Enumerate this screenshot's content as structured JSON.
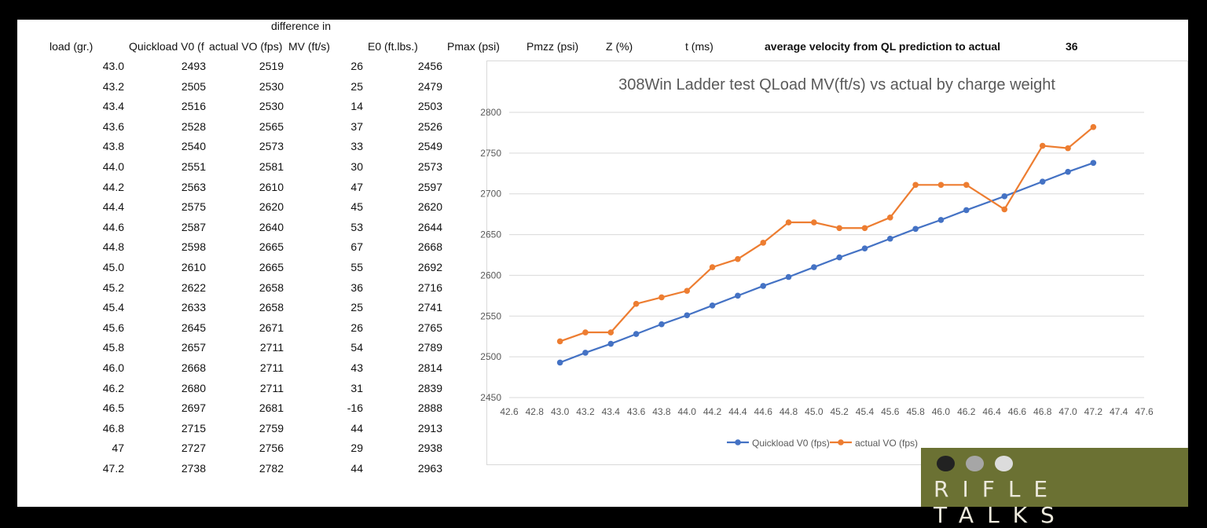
{
  "table": {
    "headers": [
      "load (gr.)",
      "Quickload V0 (f",
      "actual VO (fps)",
      "difference in",
      "MV (ft/s)",
      "E0 (ft.lbs.)",
      "Pmax (psi)",
      "Pmzz (psi)",
      "Z (%)",
      "t (ms)"
    ],
    "summary_label": "average velocity from QL prediction to actual",
    "summary_value": "36",
    "rows": [
      [
        "43.0",
        "2493",
        "2519",
        "26",
        "2456"
      ],
      [
        "43.2",
        "2505",
        "2530",
        "25",
        "2479"
      ],
      [
        "43.4",
        "2516",
        "2530",
        "14",
        "2503"
      ],
      [
        "43.6",
        "2528",
        "2565",
        "37",
        "2526"
      ],
      [
        "43.8",
        "2540",
        "2573",
        "33",
        "2549"
      ],
      [
        "44.0",
        "2551",
        "2581",
        "30",
        "2573"
      ],
      [
        "44.2",
        "2563",
        "2610",
        "47",
        "2597"
      ],
      [
        "44.4",
        "2575",
        "2620",
        "45",
        "2620"
      ],
      [
        "44.6",
        "2587",
        "2640",
        "53",
        "2644"
      ],
      [
        "44.8",
        "2598",
        "2665",
        "67",
        "2668"
      ],
      [
        "45.0",
        "2610",
        "2665",
        "55",
        "2692"
      ],
      [
        "45.2",
        "2622",
        "2658",
        "36",
        "2716"
      ],
      [
        "45.4",
        "2633",
        "2658",
        "25",
        "2741"
      ],
      [
        "45.6",
        "2645",
        "2671",
        "26",
        "2765"
      ],
      [
        "45.8",
        "2657",
        "2711",
        "54",
        "2789"
      ],
      [
        "46.0",
        "2668",
        "2711",
        "43",
        "2814"
      ],
      [
        "46.2",
        "2680",
        "2711",
        "31",
        "2839"
      ],
      [
        "46.5",
        "2697",
        "2681",
        "-16",
        "2888"
      ],
      [
        "46.8",
        "2715",
        "2759",
        "44",
        "2913"
      ],
      [
        "47",
        "2727",
        "2756",
        "29",
        "2938"
      ],
      [
        "47.2",
        "2738",
        "2782",
        "44",
        "2963"
      ]
    ]
  },
  "chart_data": {
    "type": "line",
    "title": "308Win Ladder test QLoad MV(ft/s) vs actual by charge weight",
    "x": [
      43.0,
      43.2,
      43.4,
      43.6,
      43.8,
      44.0,
      44.2,
      44.4,
      44.6,
      44.8,
      45.0,
      45.2,
      45.4,
      45.6,
      45.8,
      46.0,
      46.2,
      46.5,
      46.8,
      47.0,
      47.2
    ],
    "series": [
      {
        "name": "Quickload V0 (fps)",
        "color": "#4472c4",
        "values": [
          2493,
          2505,
          2516,
          2528,
          2540,
          2551,
          2563,
          2575,
          2587,
          2598,
          2610,
          2622,
          2633,
          2645,
          2657,
          2668,
          2680,
          2697,
          2715,
          2727,
          2738
        ]
      },
      {
        "name": "actual VO (fps)",
        "color": "#ed7d31",
        "values": [
          2519,
          2530,
          2530,
          2565,
          2573,
          2581,
          2610,
          2620,
          2640,
          2665,
          2665,
          2658,
          2658,
          2671,
          2711,
          2711,
          2711,
          2681,
          2759,
          2756,
          2782
        ]
      }
    ],
    "xlim": [
      42.6,
      47.6
    ],
    "ylim": [
      2450,
      2800
    ],
    "xticks": [
      "42.6",
      "42.8",
      "43.0",
      "43.2",
      "43.4",
      "43.6",
      "43.8",
      "44.0",
      "44.2",
      "44.4",
      "44.6",
      "44.8",
      "45.0",
      "45.2",
      "45.4",
      "45.6",
      "45.8",
      "46.0",
      "46.2",
      "46.4",
      "46.6",
      "46.8",
      "47.0",
      "47.2",
      "47.4",
      "47.6"
    ],
    "yticks": [
      "2450",
      "2500",
      "2550",
      "2600",
      "2650",
      "2700",
      "2750",
      "2800"
    ],
    "grid": true,
    "legend": "bottom"
  },
  "logo": {
    "text": "RIFLE TALKS",
    "colors": {
      "bg": "#6b7133",
      "dot1": "#222222",
      "dot2": "#a6a6a6",
      "dot3": "#dcdcdc"
    }
  }
}
